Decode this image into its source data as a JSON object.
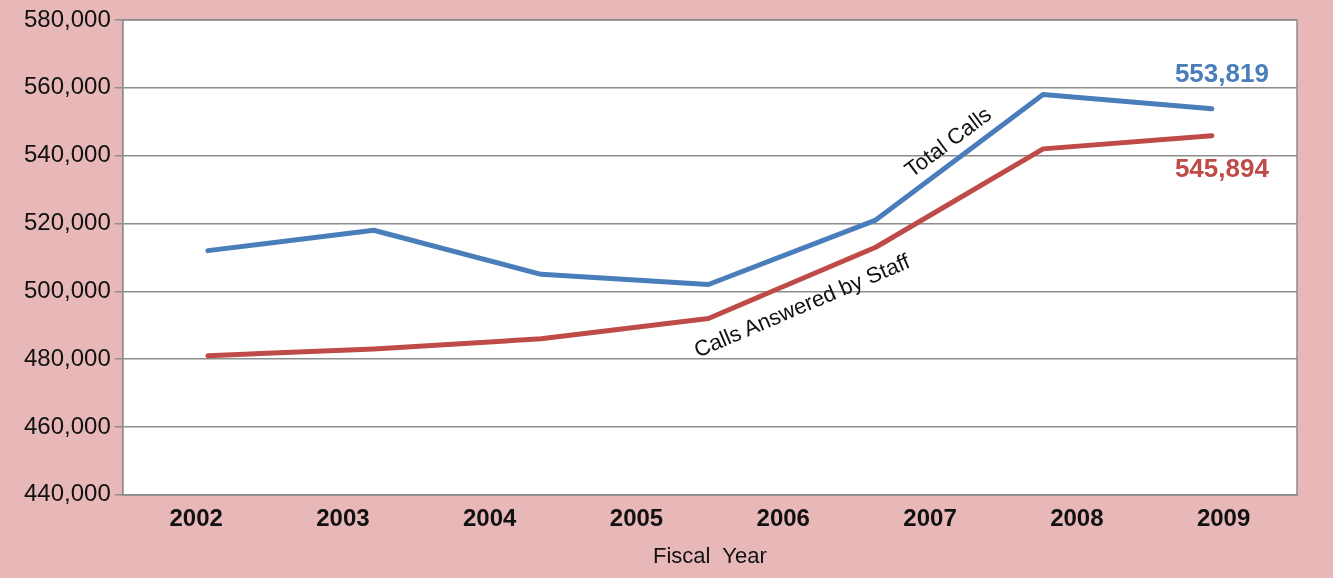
{
  "chart_data": {
    "type": "line",
    "xlabel": "Fiscal  Year",
    "x": [
      2002.08,
      2003.21,
      2004.35,
      2005.49,
      2006.63,
      2007.77,
      2008.92
    ],
    "xlim": [
      2001.5,
      2009.5
    ],
    "xticks": [
      {
        "value": 2002,
        "label": "2002"
      },
      {
        "value": 2003,
        "label": "2003"
      },
      {
        "value": 2004,
        "label": "2004"
      },
      {
        "value": 2005,
        "label": "2005"
      },
      {
        "value": 2006,
        "label": "2006"
      },
      {
        "value": 2007,
        "label": "2007"
      },
      {
        "value": 2008,
        "label": "2008"
      },
      {
        "value": 2009,
        "label": "2009"
      }
    ],
    "ylim": [
      440000,
      580000
    ],
    "yticks": [
      {
        "value": 440000,
        "label": "440,000"
      },
      {
        "value": 460000,
        "label": "460,000"
      },
      {
        "value": 480000,
        "label": "480,000"
      },
      {
        "value": 500000,
        "label": "500,000"
      },
      {
        "value": 520000,
        "label": "520,000"
      },
      {
        "value": 540000,
        "label": "540,000"
      },
      {
        "value": 560000,
        "label": "560,000"
      },
      {
        "value": 580000,
        "label": "580,000"
      }
    ],
    "grid": "y",
    "legend": false,
    "marker": "none",
    "line_style": "solid",
    "series": [
      {
        "name": "Total Calls",
        "color": "#4a7ebb",
        "values": [
          512000,
          518000,
          505000,
          502000,
          521000,
          558000,
          553819
        ],
        "value_labels": [
          null,
          null,
          null,
          null,
          null,
          null,
          "553,819"
        ]
      },
      {
        "name": "Calls Answered by Staff",
        "color": "#be4b48",
        "values": [
          481000,
          483000,
          486000,
          492000,
          513000,
          542000,
          545894
        ],
        "value_labels": [
          null,
          null,
          null,
          null,
          null,
          null,
          "545,894"
        ]
      }
    ]
  }
}
